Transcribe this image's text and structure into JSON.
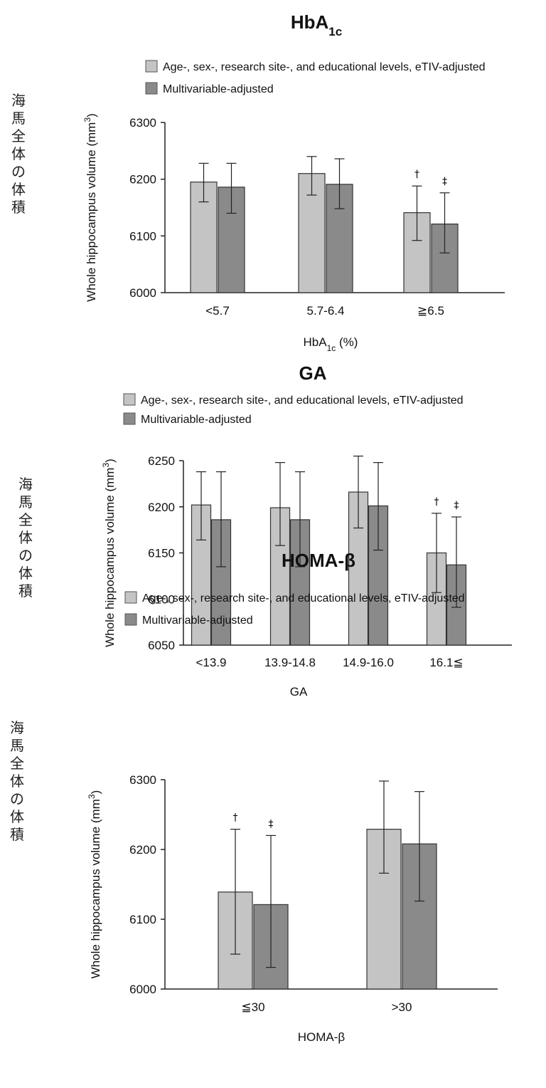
{
  "page": {
    "side_label": "海馬全体の体積",
    "colors": {
      "series1": "#c4c4c4",
      "series2": "#8a8a8a",
      "stroke": "#333333"
    }
  },
  "chart_data": [
    {
      "type": "bar",
      "title": "HbA",
      "title_sub": "1c",
      "xlabel": "HbA",
      "xlabel_sub": "1c",
      "xlabel_suffix": " (%)",
      "ylabel": "Whole hippocampus volume (mm",
      "ylabel_sup": "3",
      "ylabel_close": ")",
      "ylim": [
        6000,
        6300
      ],
      "yticks": [
        6000,
        6100,
        6200,
        6300
      ],
      "categories": [
        "<5.7",
        "5.7-6.4",
        "≧6.5"
      ],
      "series": [
        {
          "name": "Age-, sex-, research site-, and educational levels, eTIV-adjusted",
          "values": [
            6195,
            6210,
            6141
          ],
          "err_low": [
            6160,
            6172,
            6092
          ],
          "err_high": [
            6228,
            6240,
            6188
          ],
          "marks": [
            "",
            "",
            "†"
          ]
        },
        {
          "name": "Multivariable-adjusted",
          "values": [
            6186,
            6191,
            6121
          ],
          "err_low": [
            6140,
            6148,
            6070
          ],
          "err_high": [
            6228,
            6236,
            6176
          ],
          "marks": [
            "",
            "",
            "‡"
          ]
        }
      ]
    },
    {
      "type": "bar",
      "title": "GA",
      "xlabel": "GA",
      "ylabel": "Whole hippocampus volume (mm",
      "ylabel_sup": "3",
      "ylabel_close": ")",
      "ylim": [
        6050,
        6250
      ],
      "yticks": [
        6050,
        6100,
        6150,
        6200,
        6250
      ],
      "categories": [
        "<13.9",
        "13.9-14.8",
        "14.9-16.0",
        "16.1≦"
      ],
      "series": [
        {
          "name": "Age-, sex-, research site-, and educational levels, eTIV-adjusted",
          "values": [
            6202,
            6199,
            6216,
            6150
          ],
          "err_low": [
            6164,
            6158,
            6177,
            6107
          ],
          "err_high": [
            6238,
            6248,
            6255,
            6193
          ],
          "marks": [
            "",
            "",
            "",
            "†"
          ]
        },
        {
          "name": "Multivariable-adjusted",
          "values": [
            6186,
            6186,
            6201,
            6137
          ],
          "err_low": [
            6135,
            6135,
            6153,
            6091
          ],
          "err_high": [
            6238,
            6238,
            6248,
            6189
          ],
          "marks": [
            "",
            "",
            "",
            "‡"
          ]
        }
      ]
    },
    {
      "type": "bar",
      "title": "HOMA-β",
      "xlabel": "HOMA-β",
      "ylabel": "Whole hippocampus volume (mm",
      "ylabel_sup": "3",
      "ylabel_close": ")",
      "ylim": [
        6000,
        6300
      ],
      "yticks": [
        6000,
        6100,
        6200,
        6300
      ],
      "categories": [
        "≦30",
        ">30"
      ],
      "series": [
        {
          "name": "Age-, sex-, research site-, and educational levels, eTIV-adjusted",
          "values": [
            6139,
            6229
          ],
          "err_low": [
            6050,
            6166
          ],
          "err_high": [
            6229,
            6298
          ],
          "marks": [
            "†",
            ""
          ]
        },
        {
          "name": "Multivariable-adjusted",
          "values": [
            6121,
            6208
          ],
          "err_low": [
            6031,
            6126
          ],
          "err_high": [
            6220,
            6283
          ],
          "marks": [
            "‡",
            ""
          ]
        }
      ]
    }
  ]
}
